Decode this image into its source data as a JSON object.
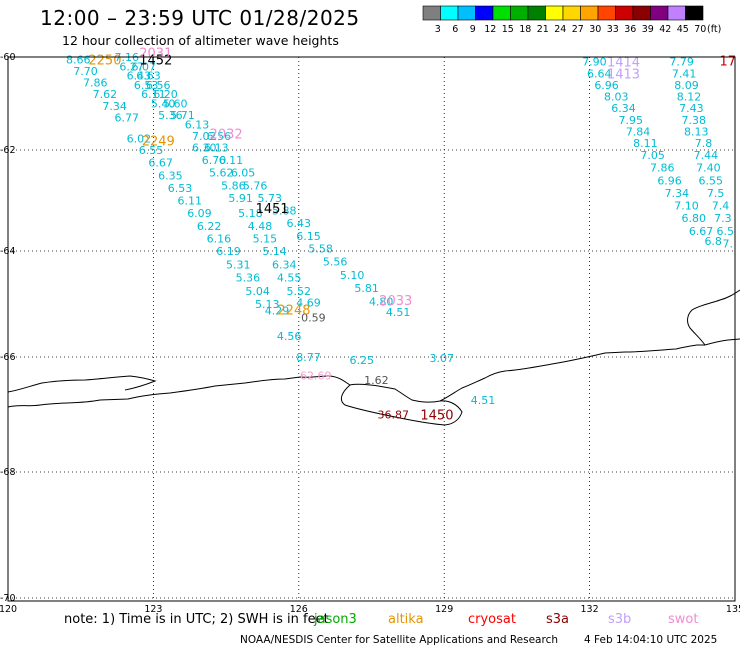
{
  "title": "12:00 – 23:59 UTC 01/28/2025",
  "subtitle": "12 hour collection of altimeter wave heights",
  "colorbar": {
    "ticks": [
      "3",
      "6",
      "9",
      "12",
      "15",
      "18",
      "21",
      "24",
      "27",
      "30",
      "33",
      "36",
      "39",
      "42",
      "45",
      "70"
    ],
    "unit": "(ft)",
    "colors": [
      "#7f7f7f",
      "#00ffff",
      "#00bfff",
      "#0000ff",
      "#00e000",
      "#00b000",
      "#008000",
      "#ffff00",
      "#ffd700",
      "#ffa500",
      "#ff4500",
      "#cc0000",
      "#8b0000",
      "#800080",
      "#c080ff",
      "#000000"
    ]
  },
  "map": {
    "lat_ticks": [
      "-60",
      "-62",
      "-64",
      "-66",
      "-68",
      "-70"
    ],
    "lon_ticks": [
      "120",
      "123",
      "126",
      "129",
      "132",
      "135"
    ]
  },
  "observations": [
    {
      "t": "8.66",
      "lon": 121.45,
      "lat": -60.05,
      "color": "#00bcd4"
    },
    {
      "t": "7.70",
      "lon": 121.6,
      "lat": -60.3,
      "color": "#00bcd4"
    },
    {
      "t": "7.86",
      "lon": 121.8,
      "lat": -60.55,
      "color": "#00bcd4"
    },
    {
      "t": "7.62",
      "lon": 122.0,
      "lat": -60.8,
      "color": "#00bcd4"
    },
    {
      "t": "7.34",
      "lon": 122.2,
      "lat": -61.05,
      "color": "#00bcd4"
    },
    {
      "t": "6.77",
      "lon": 122.45,
      "lat": -61.3,
      "color": "#00bcd4"
    },
    {
      "t": "7.16",
      "lon": 122.45,
      "lat": -60.0,
      "color": "#00bcd4"
    },
    {
      "t": "6.27",
      "lon": 122.55,
      "lat": -60.2,
      "color": "#00bcd4"
    },
    {
      "t": "6.07",
      "lon": 122.8,
      "lat": -60.2,
      "color": "#00bcd4"
    },
    {
      "t": "6.43",
      "lon": 122.7,
      "lat": -60.4,
      "color": "#00bcd4"
    },
    {
      "t": "6.63",
      "lon": 122.9,
      "lat": -60.4,
      "color": "#00bcd4"
    },
    {
      "t": "6.53",
      "lon": 122.85,
      "lat": -60.6,
      "color": "#00bcd4"
    },
    {
      "t": "6.56",
      "lon": 123.1,
      "lat": -60.6,
      "color": "#00bcd4"
    },
    {
      "t": "6.11",
      "lon": 123.0,
      "lat": -60.8,
      "color": "#00bcd4"
    },
    {
      "t": "6.20",
      "lon": 123.25,
      "lat": -60.8,
      "color": "#00bcd4"
    },
    {
      "t": "5.40",
      "lon": 123.2,
      "lat": -61.0,
      "color": "#00bcd4"
    },
    {
      "t": "5.60",
      "lon": 123.45,
      "lat": -61.0,
      "color": "#00bcd4"
    },
    {
      "t": "5.36",
      "lon": 123.35,
      "lat": -61.25,
      "color": "#00bcd4"
    },
    {
      "t": "5.71",
      "lon": 123.6,
      "lat": -61.25,
      "color": "#00bcd4"
    },
    {
      "t": "6.13",
      "lon": 123.9,
      "lat": -61.45,
      "color": "#00bcd4"
    },
    {
      "t": "6.02",
      "lon": 122.7,
      "lat": -61.75,
      "color": "#00bcd4"
    },
    {
      "t": "6.55",
      "lon": 122.95,
      "lat": -62.0,
      "color": "#00bcd4"
    },
    {
      "t": "6.67",
      "lon": 123.15,
      "lat": -62.25,
      "color": "#00bcd4"
    },
    {
      "t": "6.35",
      "lon": 123.35,
      "lat": -62.5,
      "color": "#00bcd4"
    },
    {
      "t": "6.53",
      "lon": 123.55,
      "lat": -62.75,
      "color": "#00bcd4"
    },
    {
      "t": "6.11",
      "lon": 123.75,
      "lat": -63.0,
      "color": "#00bcd4"
    },
    {
      "t": "6.09",
      "lon": 123.95,
      "lat": -63.25,
      "color": "#00bcd4"
    },
    {
      "t": "6.22",
      "lon": 124.15,
      "lat": -63.5,
      "color": "#00bcd4"
    },
    {
      "t": "6.16",
      "lon": 124.35,
      "lat": -63.75,
      "color": "#00bcd4"
    },
    {
      "t": "6.19",
      "lon": 124.55,
      "lat": -64.0,
      "color": "#00bcd4"
    },
    {
      "t": "5.31",
      "lon": 124.75,
      "lat": -64.25,
      "color": "#00bcd4"
    },
    {
      "t": "5.36",
      "lon": 124.95,
      "lat": -64.5,
      "color": "#00bcd4"
    },
    {
      "t": "5.04",
      "lon": 125.15,
      "lat": -64.75,
      "color": "#00bcd4"
    },
    {
      "t": "5.13",
      "lon": 125.35,
      "lat": -65.0,
      "color": "#00bcd4"
    },
    {
      "t": "4.29",
      "lon": 125.55,
      "lat": -65.12,
      "color": "#00bcd4"
    },
    {
      "t": "7.02",
      "lon": 124.05,
      "lat": -61.7,
      "color": "#00bcd4"
    },
    {
      "t": "6.56",
      "lon": 124.35,
      "lat": -61.7,
      "color": "#00bcd4"
    },
    {
      "t": "6.30",
      "lon": 124.05,
      "lat": -61.95,
      "color": "#00bcd4"
    },
    {
      "t": "6.13",
      "lon": 124.3,
      "lat": -61.95,
      "color": "#00bcd4"
    },
    {
      "t": "6.70",
      "lon": 124.25,
      "lat": -62.2,
      "color": "#00bcd4"
    },
    {
      "t": "6.11",
      "lon": 124.6,
      "lat": -62.2,
      "color": "#00bcd4"
    },
    {
      "t": "5.62",
      "lon": 124.4,
      "lat": -62.45,
      "color": "#00bcd4"
    },
    {
      "t": "6.05",
      "lon": 124.85,
      "lat": -62.45,
      "color": "#00bcd4"
    },
    {
      "t": "5.86",
      "lon": 124.65,
      "lat": -62.7,
      "color": "#00bcd4"
    },
    {
      "t": "5.76",
      "lon": 125.1,
      "lat": -62.7,
      "color": "#00bcd4"
    },
    {
      "t": "5.91",
      "lon": 124.8,
      "lat": -62.95,
      "color": "#00bcd4"
    },
    {
      "t": "5.73",
      "lon": 125.4,
      "lat": -62.95,
      "color": "#00bcd4"
    },
    {
      "t": "5.18",
      "lon": 125.0,
      "lat": -63.25,
      "color": "#00bcd4"
    },
    {
      "t": "5.88",
      "lon": 125.7,
      "lat": -63.2,
      "color": "#00bcd4"
    },
    {
      "t": "4.48",
      "lon": 125.2,
      "lat": -63.5,
      "color": "#00bcd4"
    },
    {
      "t": "6.43",
      "lon": 126.0,
      "lat": -63.45,
      "color": "#00bcd4"
    },
    {
      "t": "5.15",
      "lon": 125.3,
      "lat": -63.75,
      "color": "#00bcd4"
    },
    {
      "t": "6.15",
      "lon": 126.2,
      "lat": -63.7,
      "color": "#00bcd4"
    },
    {
      "t": "5.14",
      "lon": 125.5,
      "lat": -64.0,
      "color": "#00bcd4"
    },
    {
      "t": "5.58",
      "lon": 126.45,
      "lat": -63.95,
      "color": "#00bcd4"
    },
    {
      "t": "6.34",
      "lon": 125.7,
      "lat": -64.25,
      "color": "#00bcd4"
    },
    {
      "t": "5.56",
      "lon": 126.75,
      "lat": -64.2,
      "color": "#00bcd4"
    },
    {
      "t": "4.55",
      "lon": 125.8,
      "lat": -64.5,
      "color": "#00bcd4"
    },
    {
      "t": "5.10",
      "lon": 127.1,
      "lat": -64.45,
      "color": "#00bcd4"
    },
    {
      "t": "5.52",
      "lon": 126.0,
      "lat": -64.75,
      "color": "#00bcd4"
    },
    {
      "t": "5.81",
      "lon": 127.4,
      "lat": -64.7,
      "color": "#00bcd4"
    },
    {
      "t": "4.69",
      "lon": 126.2,
      "lat": -64.97,
      "color": "#00bcd4"
    },
    {
      "t": "4.80",
      "lon": 127.7,
      "lat": -64.95,
      "color": "#00bcd4"
    },
    {
      "t": "4.51",
      "lon": 128.05,
      "lat": -65.15,
      "color": "#00bcd4"
    },
    {
      "t": "4.56",
      "lon": 125.8,
      "lat": -65.6,
      "color": "#00bcd4"
    },
    {
      "t": "8.77",
      "lon": 126.2,
      "lat": -66.0,
      "color": "#00bcd4"
    },
    {
      "t": "6.25",
      "lon": 127.3,
      "lat": -66.05,
      "color": "#00bcd4"
    },
    {
      "t": "3.07",
      "lon": 128.95,
      "lat": -66.02,
      "color": "#00bcd4"
    },
    {
      "t": "4.51",
      "lon": 129.8,
      "lat": -66.75,
      "color": "#00bcd4"
    },
    {
      "t": "0.59",
      "lon": 126.3,
      "lat": -65.25,
      "color": "#555555"
    },
    {
      "t": "1.62",
      "lon": 127.6,
      "lat": -66.4,
      "color": "#555555"
    },
    {
      "t": "62.69",
      "lon": 126.35,
      "lat": -66.32,
      "color": "#f0a0d0"
    },
    {
      "t": "36.87",
      "lon": 127.95,
      "lat": -67.0,
      "color": "#8b0000"
    },
    {
      "t": "7.90",
      "lon": 132.1,
      "lat": -60.1,
      "color": "#00bcd4"
    },
    {
      "t": "6.64",
      "lon": 132.2,
      "lat": -60.35,
      "color": "#00bcd4"
    },
    {
      "t": "6.96",
      "lon": 132.35,
      "lat": -60.6,
      "color": "#00bcd4"
    },
    {
      "t": "8.03",
      "lon": 132.55,
      "lat": -60.85,
      "color": "#00bcd4"
    },
    {
      "t": "6.34",
      "lon": 132.7,
      "lat": -61.1,
      "color": "#00bcd4"
    },
    {
      "t": "7.95",
      "lon": 132.85,
      "lat": -61.35,
      "color": "#00bcd4"
    },
    {
      "t": "7.84",
      "lon": 133.0,
      "lat": -61.6,
      "color": "#00bcd4"
    },
    {
      "t": "8.11",
      "lon": 133.15,
      "lat": -61.85,
      "color": "#00bcd4"
    },
    {
      "t": "7.05",
      "lon": 133.3,
      "lat": -62.1,
      "color": "#00bcd4"
    },
    {
      "t": "7.86",
      "lon": 133.5,
      "lat": -62.35,
      "color": "#00bcd4"
    },
    {
      "t": "6.96",
      "lon": 133.65,
      "lat": -62.6,
      "color": "#00bcd4"
    },
    {
      "t": "7.34",
      "lon": 133.8,
      "lat": -62.85,
      "color": "#00bcd4"
    },
    {
      "t": "7.10",
      "lon": 134.0,
      "lat": -63.1,
      "color": "#00bcd4"
    },
    {
      "t": "6.80",
      "lon": 134.15,
      "lat": -63.35,
      "color": "#00bcd4"
    },
    {
      "t": "6.67",
      "lon": 134.3,
      "lat": -63.6,
      "color": "#00bcd4"
    },
    {
      "t": "6.8",
      "lon": 134.55,
      "lat": -63.8,
      "color": "#00bcd4"
    },
    {
      "t": "7.79",
      "lon": 133.9,
      "lat": -60.1,
      "color": "#00bcd4"
    },
    {
      "t": "7.41",
      "lon": 133.95,
      "lat": -60.35,
      "color": "#00bcd4"
    },
    {
      "t": "8.09",
      "lon": 134.0,
      "lat": -60.6,
      "color": "#00bcd4"
    },
    {
      "t": "8.12",
      "lon": 134.05,
      "lat": -60.85,
      "color": "#00bcd4"
    },
    {
      "t": "7.43",
      "lon": 134.1,
      "lat": -61.1,
      "color": "#00bcd4"
    },
    {
      "t": "7.38",
      "lon": 134.15,
      "lat": -61.35,
      "color": "#00bcd4"
    },
    {
      "t": "8.13",
      "lon": 134.2,
      "lat": -61.6,
      "color": "#00bcd4"
    },
    {
      "t": "7.8",
      "lon": 134.35,
      "lat": -61.85,
      "color": "#00bcd4"
    },
    {
      "t": "7.44",
      "lon": 134.4,
      "lat": -62.1,
      "color": "#00bcd4"
    },
    {
      "t": "7.40",
      "lon": 134.45,
      "lat": -62.35,
      "color": "#00bcd4"
    },
    {
      "t": "6.55",
      "lon": 134.5,
      "lat": -62.6,
      "color": "#00bcd4"
    },
    {
      "t": "7.5",
      "lon": 134.6,
      "lat": -62.85,
      "color": "#00bcd4"
    },
    {
      "t": "7.4",
      "lon": 134.7,
      "lat": -63.1,
      "color": "#00bcd4"
    },
    {
      "t": "7.3",
      "lon": 134.75,
      "lat": -63.35,
      "color": "#00bcd4"
    },
    {
      "t": "6.5",
      "lon": 134.8,
      "lat": -63.6,
      "color": "#00bcd4"
    },
    {
      "t": "7.",
      "lon": 134.85,
      "lat": -63.85,
      "color": "#00bcd4"
    }
  ],
  "time_labels": [
    {
      "t": "2250",
      "lon": 122.0,
      "lat": -60.05,
      "color": "#e69500"
    },
    {
      "t": "1452",
      "lon": 123.05,
      "lat": -60.05,
      "color": "#000000"
    },
    {
      "t": "2031",
      "lon": 123.05,
      "lat": -59.9,
      "color": "#f08cd0"
    },
    {
      "t": "2249",
      "lon": 123.1,
      "lat": -61.8,
      "color": "#e69500"
    },
    {
      "t": "2032",
      "lon": 124.5,
      "lat": -61.65,
      "color": "#f08cd0"
    },
    {
      "t": "1451",
      "lon": 125.45,
      "lat": -63.15,
      "color": "#000000"
    },
    {
      "t": "2248",
      "lon": 125.9,
      "lat": -65.1,
      "color": "#e69500"
    },
    {
      "t": "2033",
      "lon": 128.0,
      "lat": -64.92,
      "color": "#f08cd0"
    },
    {
      "t": "1450",
      "lon": 128.85,
      "lat": -67.0,
      "color": "#8b0000"
    },
    {
      "t": "1414",
      "lon": 132.7,
      "lat": -60.1,
      "color": "#c0a0ff"
    },
    {
      "t": "1413",
      "lon": 132.7,
      "lat": -60.35,
      "color": "#c0a0ff"
    },
    {
      "t": "17",
      "lon": 134.85,
      "lat": -60.08,
      "color": "#cc0000"
    }
  ],
  "note": "note: 1) Time is in UTC; 2) SWH is in feet",
  "satellites": [
    {
      "name": "jason3",
      "color": "#00aa00"
    },
    {
      "name": "altika",
      "color": "#e69500"
    },
    {
      "name": "cryosat",
      "color": "#ff0000"
    },
    {
      "name": "s3a",
      "color": "#8b0000"
    },
    {
      "name": "s3b",
      "color": "#c0a0ff"
    },
    {
      "name": "swot",
      "color": "#f08cd0"
    }
  ],
  "credit": "NOAA/NESDIS Center for Satellite Applications and Research",
  "stamp": "4 Feb 14:04:10 UTC 2025"
}
